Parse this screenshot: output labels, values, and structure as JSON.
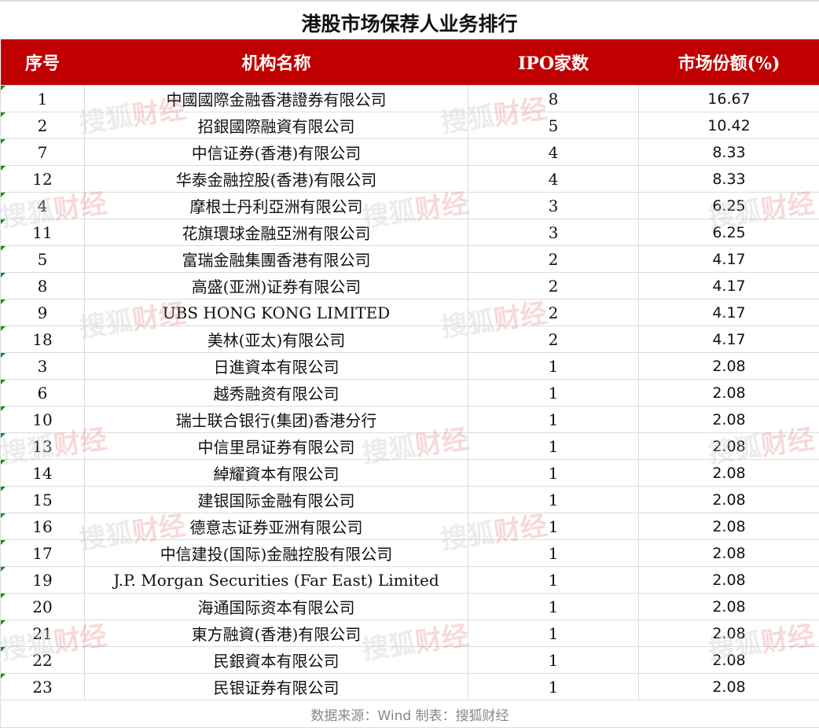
{
  "title": "港股市场保荐人业务排行",
  "header": {
    "rank": "序号",
    "name": "机构名称",
    "ipo_count": "IPO家数",
    "share": "市场份额(%)"
  },
  "accent_color": "#c00000",
  "rows": [
    {
      "rank": "1",
      "name": "中國國際金融香港證券有限公司",
      "ipo_count": "8",
      "share": "16.67"
    },
    {
      "rank": "2",
      "name": "招銀國際融資有限公司",
      "ipo_count": "5",
      "share": "10.42"
    },
    {
      "rank": "7",
      "name": "中信证券(香港)有限公司",
      "ipo_count": "4",
      "share": "8.33"
    },
    {
      "rank": "12",
      "name": "华泰金融控股(香港)有限公司",
      "ipo_count": "4",
      "share": "8.33"
    },
    {
      "rank": "4",
      "name": "摩根士丹利亞洲有限公司",
      "ipo_count": "3",
      "share": "6.25"
    },
    {
      "rank": "11",
      "name": "花旗環球金融亞洲有限公司",
      "ipo_count": "3",
      "share": "6.25"
    },
    {
      "rank": "5",
      "name": "富瑞金融集團香港有限公司",
      "ipo_count": "2",
      "share": "4.17"
    },
    {
      "rank": "8",
      "name": "高盛(亚洲)证券有限公司",
      "ipo_count": "2",
      "share": "4.17"
    },
    {
      "rank": "9",
      "name": "UBS HONG KONG LIMITED",
      "ipo_count": "2",
      "share": "4.17"
    },
    {
      "rank": "18",
      "name": "美林(亚太)有限公司",
      "ipo_count": "2",
      "share": "4.17"
    },
    {
      "rank": "3",
      "name": "日進資本有限公司",
      "ipo_count": "1",
      "share": "2.08"
    },
    {
      "rank": "6",
      "name": "越秀融资有限公司",
      "ipo_count": "1",
      "share": "2.08"
    },
    {
      "rank": "10",
      "name": "瑞士联合银行(集团)香港分行",
      "ipo_count": "1",
      "share": "2.08"
    },
    {
      "rank": "13",
      "name": "中信里昂证券有限公司",
      "ipo_count": "1",
      "share": "2.08"
    },
    {
      "rank": "14",
      "name": "綽耀資本有限公司",
      "ipo_count": "1",
      "share": "2.08"
    },
    {
      "rank": "15",
      "name": "建银国际金融有限公司",
      "ipo_count": "1",
      "share": "2.08"
    },
    {
      "rank": "16",
      "name": "德意志证券亚洲有限公司",
      "ipo_count": "1",
      "share": "2.08"
    },
    {
      "rank": "17",
      "name": "中信建投(国际)金融控股有限公司",
      "ipo_count": "1",
      "share": "2.08"
    },
    {
      "rank": "19",
      "name": "J.P. Morgan Securities (Far East) Limited",
      "ipo_count": "1",
      "share": "2.08"
    },
    {
      "rank": "20",
      "name": "海通国际资本有限公司",
      "ipo_count": "1",
      "share": "2.08"
    },
    {
      "rank": "21",
      "name": "東方融資(香港)有限公司",
      "ipo_count": "1",
      "share": "2.08"
    },
    {
      "rank": "22",
      "name": "民銀資本有限公司",
      "ipo_count": "1",
      "share": "2.08"
    },
    {
      "rank": "23",
      "name": "民银证券有限公司",
      "ipo_count": "1",
      "share": "2.08"
    }
  ],
  "footer": "数据来源：Wind  制表：搜狐财经",
  "watermark": {
    "brand": "搜狐",
    "tag": "财经"
  }
}
